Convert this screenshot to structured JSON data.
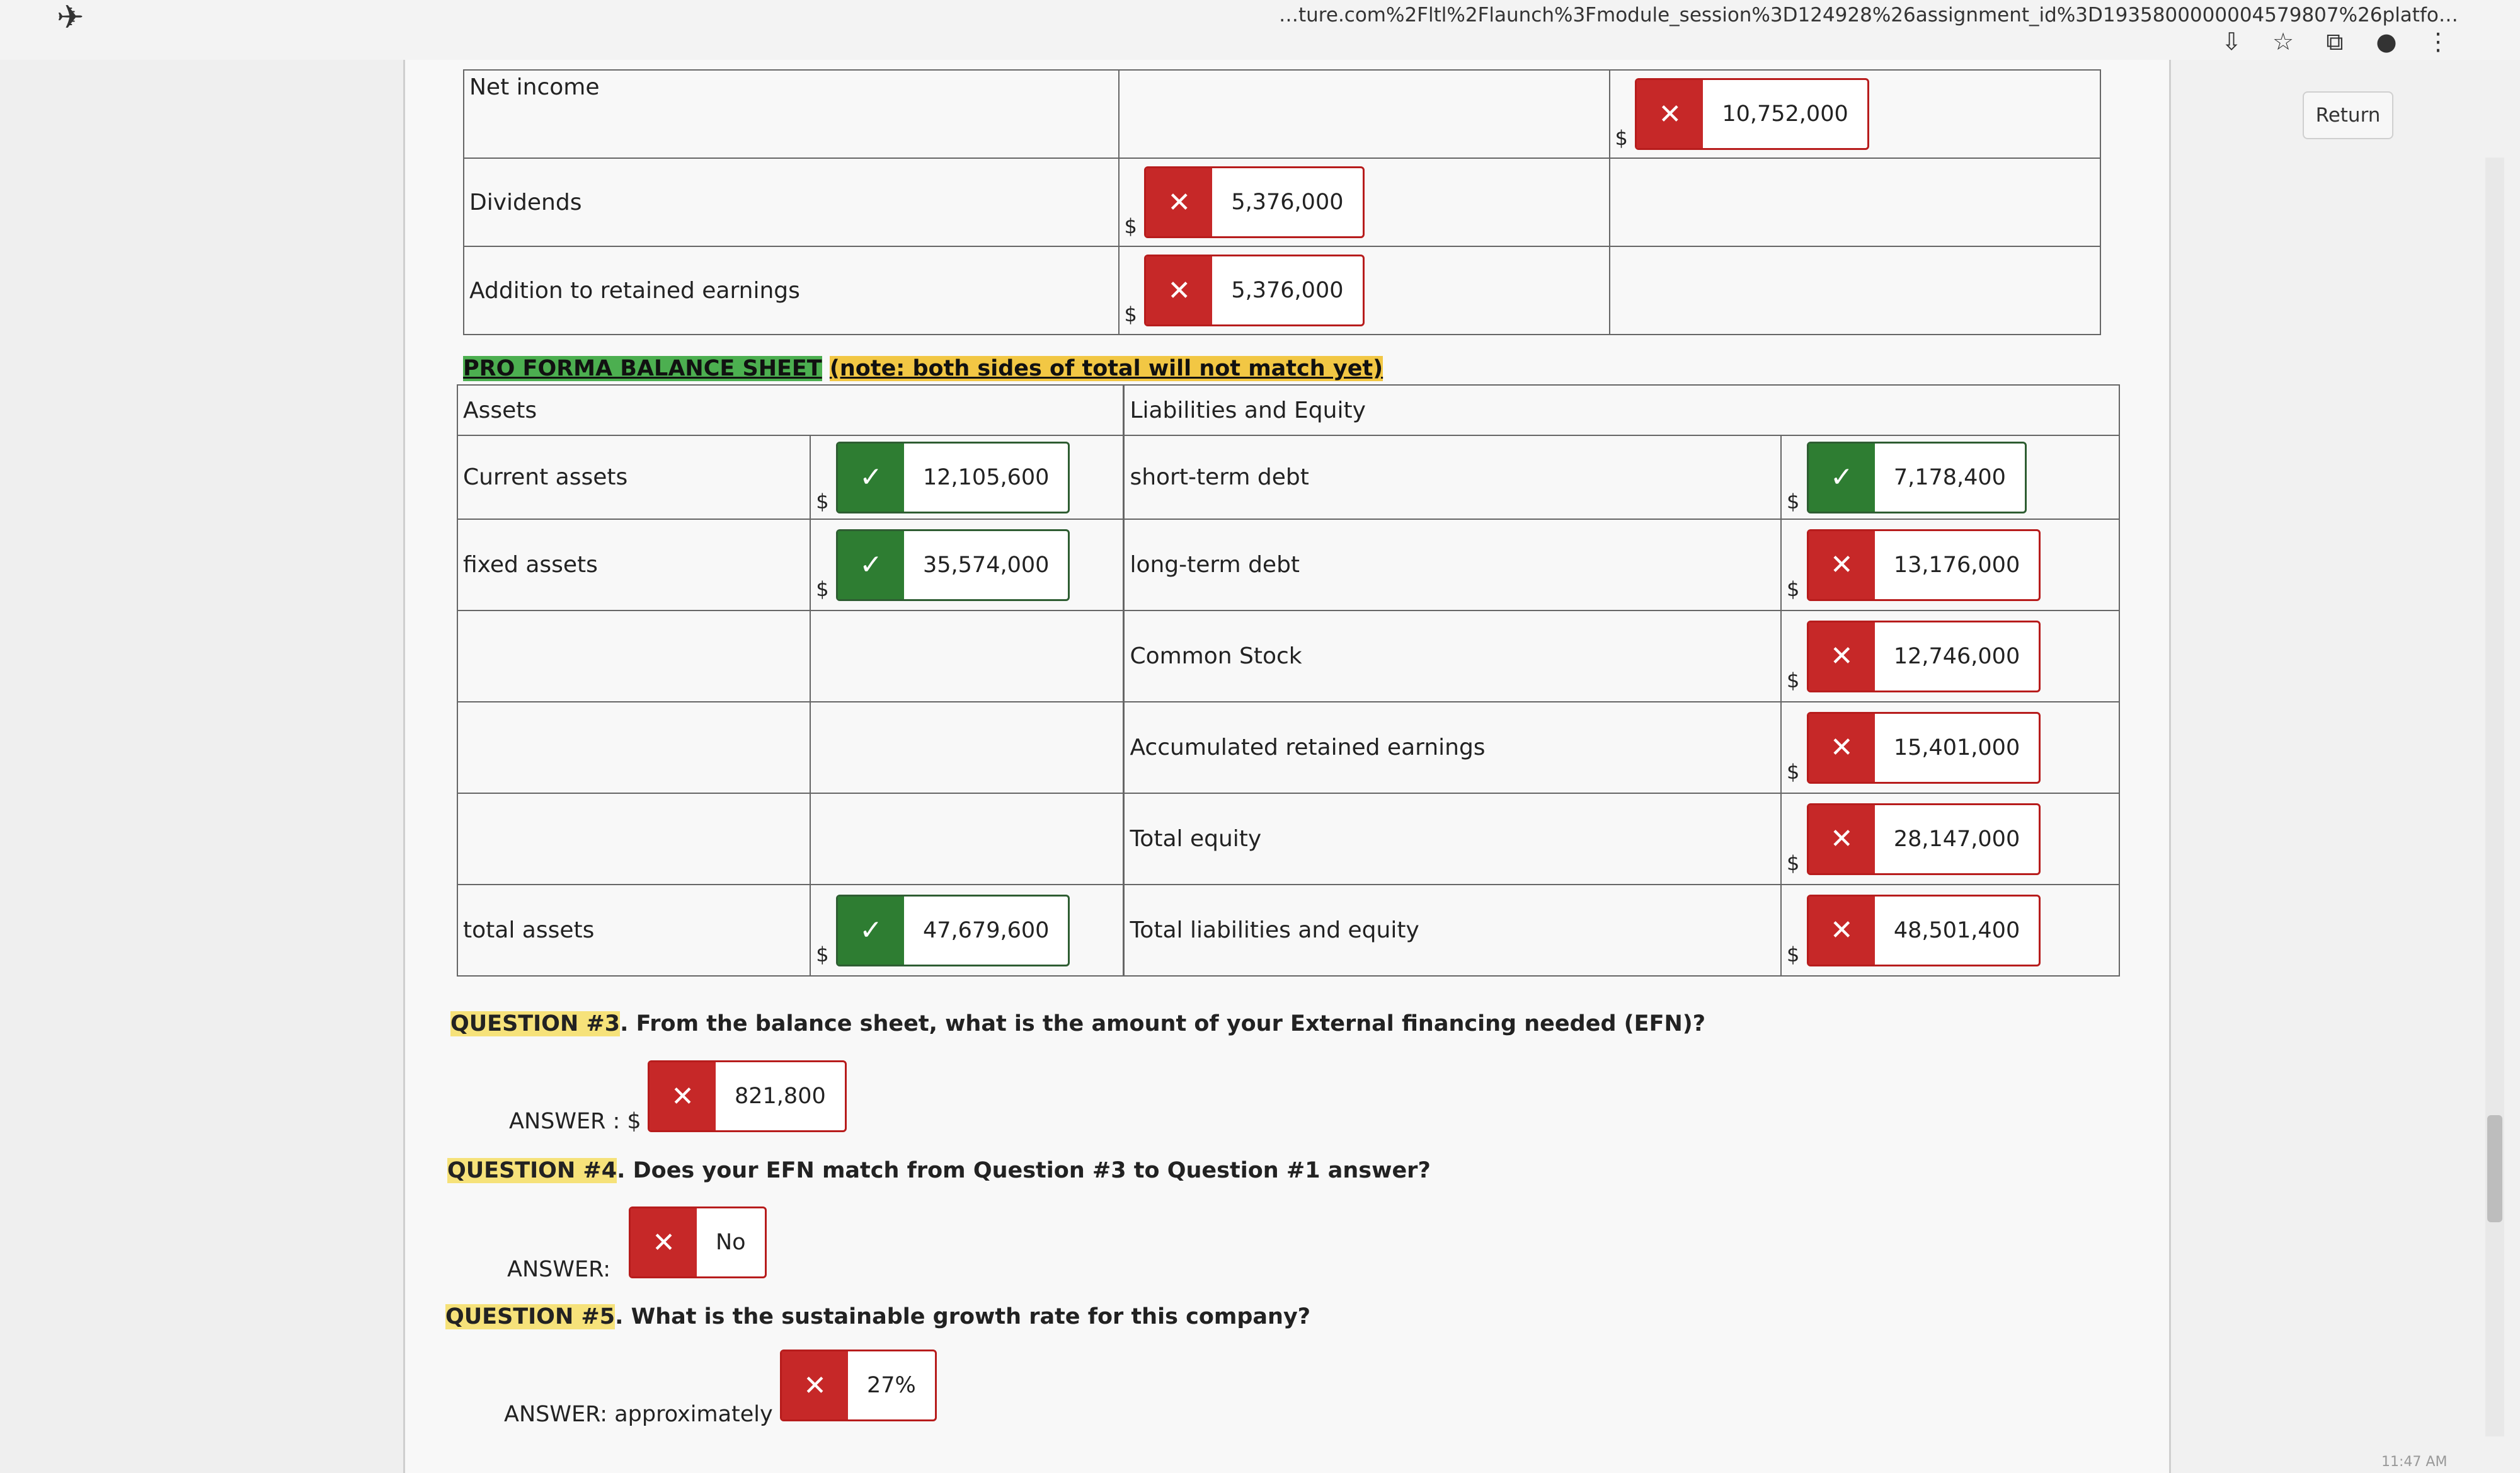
{
  "browser": {
    "url": "…ture.com%2Fltl%2Flaunch%3Fmodule_session%3D124928%26assignment_id%3D1935800000004579807%26platfo…",
    "return_label": "Return",
    "clock": "11:47 AM"
  },
  "income_rows": [
    {
      "label": "Net income",
      "value": "10,752,000",
      "status": "wrong"
    },
    {
      "label": "Dividends",
      "value": "5,376,000",
      "status": "wrong"
    },
    {
      "label": "Addition to retained earnings",
      "value": "5,376,000",
      "status": "wrong"
    }
  ],
  "currency": "$",
  "balance_sheet": {
    "title": "PRO FORMA BALANCE SHEET",
    "note": "(note: both sides of total will not match yet)",
    "assets_header": "Assets",
    "liabilities_header": "Liabilities and Equity",
    "asset_rows": [
      {
        "label": "Current assets",
        "value": "12,105,600",
        "status": "correct"
      },
      {
        "label": "fixed assets",
        "value": "35,574,000",
        "status": "correct"
      },
      {
        "label": "",
        "value": "",
        "status": ""
      },
      {
        "label": "",
        "value": "",
        "status": ""
      },
      {
        "label": "",
        "value": "",
        "status": ""
      },
      {
        "label": "total assets",
        "value": "47,679,600",
        "status": "correct"
      }
    ],
    "liability_rows": [
      {
        "label": "short-term debt",
        "value": "7,178,400",
        "status": "correct"
      },
      {
        "label": "long-term debt",
        "value": "13,176,000",
        "status": "wrong"
      },
      {
        "label": "Common Stock",
        "value": "12,746,000",
        "status": "wrong"
      },
      {
        "label": "Accumulated retained earnings",
        "value": "15,401,000",
        "status": "wrong"
      },
      {
        "label": "Total equity",
        "value": "28,147,000",
        "status": "wrong"
      },
      {
        "label": "Total liabilities and equity",
        "value": "48,501,400",
        "status": "wrong"
      }
    ]
  },
  "questions": [
    {
      "number": "QUESTION #3",
      "text": ". From the balance sheet, what is the amount of your External financing needed (EFN)?",
      "answer_label": "ANSWER : $",
      "answer": "821,800",
      "status": "wrong"
    },
    {
      "number": "QUESTION #4",
      "text": ". Does your EFN match from Question #3 to Question #1 answer?",
      "answer_label": "ANSWER:",
      "answer": "No",
      "status": "wrong"
    },
    {
      "number": "QUESTION #5",
      "text": ". What is the sustainable growth rate for this company?",
      "answer_label": "ANSWER: approximately",
      "answer": "27%",
      "status": "wrong"
    }
  ],
  "icons": {
    "wrong": "close-icon",
    "correct": "check-icon"
  },
  "colors": {
    "wrong": "#c62828",
    "correct": "#2e7d32",
    "title_highlight": "#4caf50",
    "note_highlight": "#f2c744",
    "question_highlight": "#f6e27a"
  }
}
